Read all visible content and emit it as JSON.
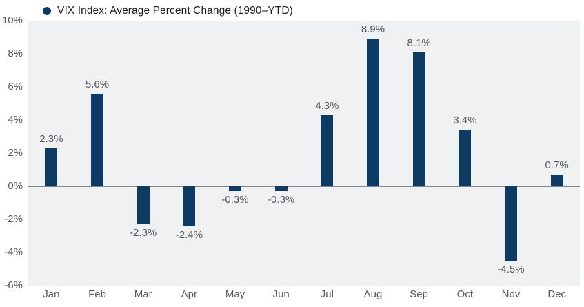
{
  "legend": {
    "label": "VIX Index: Average Percent Change (1990–YTD)",
    "marker_color": "#0e3b63"
  },
  "chart_data": {
    "type": "bar",
    "title": "VIX Index: Average Percent Change (1990–YTD)",
    "categories": [
      "Jan",
      "Feb",
      "Mar",
      "Apr",
      "May",
      "Jun",
      "Jul",
      "Aug",
      "Sep",
      "Oct",
      "Nov",
      "Dec"
    ],
    "values": [
      2.3,
      5.6,
      -2.3,
      -2.4,
      -0.3,
      -0.3,
      4.3,
      8.9,
      8.1,
      3.4,
      -4.5,
      0.7
    ],
    "value_labels": [
      "2.3%",
      "5.6%",
      "-2.3%",
      "-2.4%",
      "-0.3%",
      "-0.3%",
      "4.3%",
      "8.9%",
      "8.1%",
      "3.4%",
      "-4.5%",
      "0.7%"
    ],
    "xlabel": "",
    "ylabel": "",
    "ylim": [
      -6,
      10
    ],
    "y_tick_values": [
      10,
      8,
      6,
      4,
      2,
      0,
      -2,
      -4,
      -6
    ],
    "y_tick_labels": [
      "10%",
      "8%",
      "6%",
      "4%",
      "2%",
      "0%",
      "-2%",
      "-4%",
      "-6%"
    ],
    "grid": false,
    "legend_position": "top-left",
    "colors": {
      "bar": "#0e3b63",
      "plot_background": "#f0f1f2",
      "zero_line": "#85878a",
      "tick_label": "#56585c",
      "value_label": "#56585c",
      "title_text": "#1b1b1b"
    }
  }
}
